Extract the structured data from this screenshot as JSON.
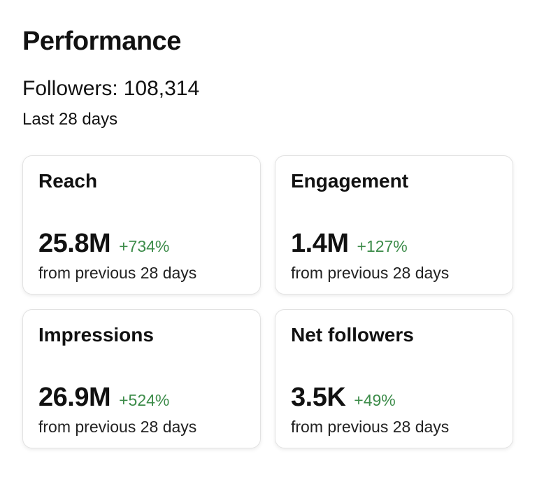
{
  "header": {
    "title": "Performance",
    "followers_label": "Followers:",
    "followers_count": "108,314",
    "period": "Last 28 days"
  },
  "change_color": "#3d8c4a",
  "cards": [
    {
      "title": "Reach",
      "value": "25.8M",
      "change": "+734%",
      "note": "from previous 28 days"
    },
    {
      "title": "Engagement",
      "value": "1.4M",
      "change": "+127%",
      "note": "from previous 28 days"
    },
    {
      "title": "Impressions",
      "value": "26.9M",
      "change": "+524%",
      "note": "from previous 28 days"
    },
    {
      "title": "Net followers",
      "value": "3.5K",
      "change": "+49%",
      "note": "from previous 28 days"
    }
  ]
}
